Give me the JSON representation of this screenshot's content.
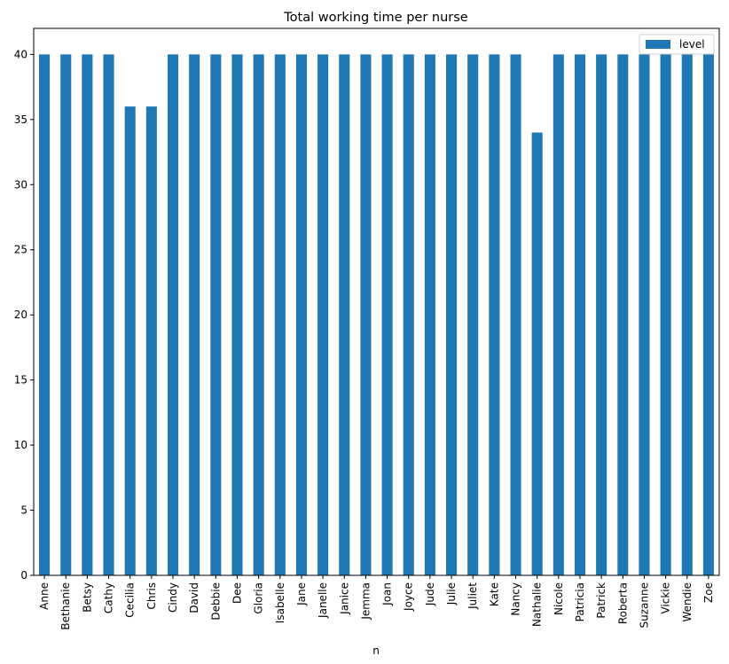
{
  "chart_data": {
    "type": "bar",
    "title": "Total working time per nurse",
    "xlabel": "n",
    "ylabel": "",
    "ylim": [
      0,
      42
    ],
    "yticks": [
      0,
      5,
      10,
      15,
      20,
      25,
      30,
      35,
      40
    ],
    "grid": false,
    "legend_position": "top-right",
    "categories": [
      "Anne",
      "Bethanie",
      "Betsy",
      "Cathy",
      "Cecilia",
      "Chris",
      "Cindy",
      "David",
      "Debbie",
      "Dee",
      "Gloria",
      "Isabelle",
      "Jane",
      "Janelle",
      "Janice",
      "Jemma",
      "Joan",
      "Joyce",
      "Jude",
      "Julie",
      "Juliet",
      "Kate",
      "Nancy",
      "Nathalie",
      "Nicole",
      "Patricia",
      "Patrick",
      "Roberta",
      "Suzanne",
      "Vickie",
      "Wendie",
      "Zoe"
    ],
    "series": [
      {
        "name": "level",
        "color": "#1f77b4",
        "values": [
          40,
          40,
          40,
          40,
          36,
          36,
          40,
          40,
          40,
          40,
          40,
          40,
          40,
          40,
          40,
          40,
          40,
          40,
          40,
          40,
          40,
          40,
          40,
          34,
          40,
          40,
          40,
          40,
          40,
          40,
          40,
          40
        ]
      }
    ]
  }
}
